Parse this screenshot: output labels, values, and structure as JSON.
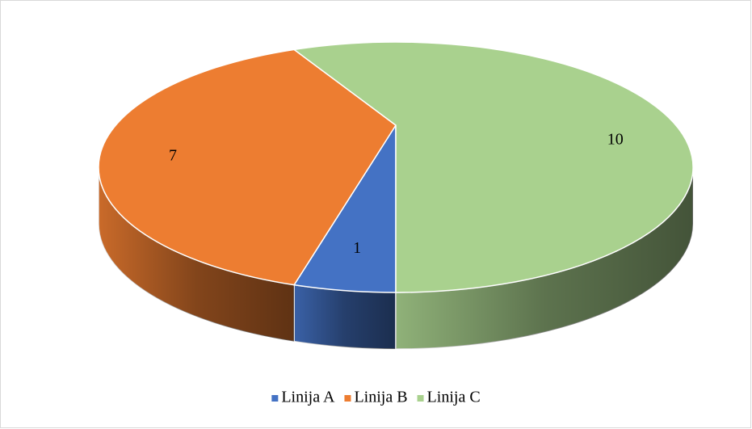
{
  "chart_data": {
    "type": "pie",
    "categories": [
      "Linija A",
      "Linija B",
      "Linija C"
    ],
    "values": [
      1,
      7,
      10
    ],
    "colors": [
      "#4472c4",
      "#ed7d31",
      "#a9d18e"
    ],
    "legend": "bottom",
    "three_d": true
  }
}
